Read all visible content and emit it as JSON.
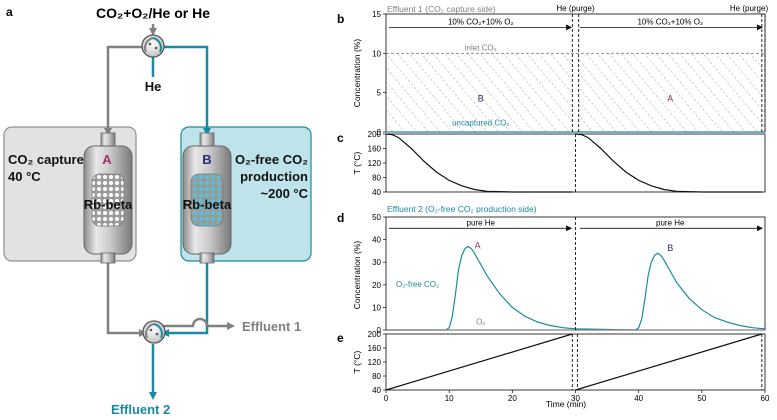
{
  "panel_labels": {
    "a": "a",
    "b": "b",
    "c": "c",
    "d": "d",
    "e": "e"
  },
  "schematic": {
    "inlet_label": "CO₂+O₂/He or He",
    "he_label": "He",
    "left_reactor": {
      "title_line1": "CO₂ capture",
      "title_line2": "40 °C",
      "letter": "A",
      "bed": "Rb-beta"
    },
    "right_reactor": {
      "title_line1": "O₂-free CO₂",
      "title_line2": "production",
      "title_line3": "~200 °C",
      "letter": "B",
      "bed": "Rb-beta"
    },
    "effluent1": "Effluent 1",
    "effluent2": "Effluent 2"
  },
  "colors": {
    "teal": "#1a8aa0",
    "gray": "#808080",
    "purple_a": "#a0306a",
    "navy_b": "#2c2a7a",
    "reactor_fill_left": "#e2e2e2",
    "reactor_fill_right": "#bfe3ea"
  },
  "chart_data": [
    {
      "id": "b",
      "type": "area",
      "header": "Effluent 1 (CO₂ capture side)",
      "ylabel": "Concentration (%)",
      "ylim": [
        0,
        15
      ],
      "yticks": [
        "0",
        "5",
        "10",
        "15"
      ],
      "xlim": [
        0,
        60
      ],
      "purge_labels": [
        "He (purge)",
        "He (purge)"
      ],
      "phase_labels": [
        "10% CO₂+10% O₂",
        "10% CO₂+10% O₂"
      ],
      "inlet_label": "inlet CO₂",
      "uncaptured_label": "uncaptured CO₂",
      "region_labels": [
        "B",
        "A"
      ],
      "series": [
        {
          "name": "inlet CO₂",
          "x": [
            0,
            29.5,
            29.5,
            60
          ],
          "y": [
            10,
            10,
            10,
            10
          ]
        },
        {
          "name": "uncaptured CO₂",
          "x": [
            0,
            30,
            60
          ],
          "y": [
            0,
            0,
            0
          ]
        }
      ]
    },
    {
      "id": "c",
      "type": "line",
      "ylabel": "T (°C)",
      "ylim": [
        40,
        200
      ],
      "yticks": [
        "40",
        "80",
        "120",
        "160",
        "200"
      ],
      "xlim": [
        0,
        60
      ],
      "series": [
        {
          "name": "temperature",
          "x": [
            0,
            1,
            2,
            4,
            6,
            8,
            10,
            12,
            14,
            16,
            20,
            25,
            29.5,
            30,
            31,
            32,
            34,
            36,
            38,
            40,
            42,
            44,
            46,
            50,
            55,
            59.5
          ],
          "y": [
            200,
            198,
            190,
            160,
            125,
            95,
            72,
            57,
            47,
            42,
            40,
            40,
            40,
            200,
            198,
            190,
            160,
            125,
            95,
            72,
            57,
            47,
            42,
            40,
            40,
            40
          ]
        }
      ]
    },
    {
      "id": "d",
      "type": "line",
      "header": "Effluent 2 (O₂-free CO₂ production side)",
      "ylabel": "Concentration (%)",
      "ylim": [
        0,
        50
      ],
      "yticks": [
        "0",
        "10",
        "20",
        "30",
        "40",
        "50"
      ],
      "xlim": [
        0,
        60
      ],
      "phase_labels": [
        "pure He",
        "pure He"
      ],
      "series_label": "O₂-free CO₂",
      "o2_label": "O₂",
      "peak_labels": [
        "A",
        "B"
      ],
      "series": [
        {
          "name": "O₂-free CO₂",
          "x": [
            0,
            9.5,
            10,
            10.5,
            11,
            11.5,
            12,
            12.5,
            13,
            13.5,
            14,
            15,
            16,
            18,
            20,
            22,
            24,
            26,
            28,
            30,
            39.5,
            40,
            40.5,
            41,
            41.5,
            42,
            42.5,
            43,
            43.5,
            44,
            45,
            46,
            48,
            50,
            52,
            54,
            56,
            58,
            60
          ],
          "y": [
            0,
            0,
            1,
            6,
            16,
            27,
            33,
            36,
            37,
            36,
            34,
            29,
            24,
            16,
            10,
            6,
            3.5,
            2,
            1,
            0.5,
            0,
            1,
            5,
            14,
            24,
            30,
            33,
            34,
            33,
            31,
            26,
            21,
            14,
            9,
            5.5,
            3.5,
            2,
            1,
            0.5
          ]
        },
        {
          "name": "O₂",
          "x": [
            0,
            60
          ],
          "y": [
            0,
            0
          ]
        }
      ]
    },
    {
      "id": "e",
      "type": "line",
      "ylabel": "T (°C)",
      "ylim": [
        40,
        200
      ],
      "yticks": [
        "40",
        "80",
        "120",
        "160",
        "200"
      ],
      "xlim": [
        0,
        60
      ],
      "xticks": [
        "0",
        "10",
        "20",
        "30",
        "40",
        "50",
        "60"
      ],
      "xlabel": "Time (min)",
      "series": [
        {
          "name": "temperature",
          "x": [
            0,
            29.5,
            29.5,
            30,
            59.5,
            59.5
          ],
          "y": [
            40,
            200,
            200,
            40,
            200,
            200
          ]
        }
      ]
    }
  ]
}
